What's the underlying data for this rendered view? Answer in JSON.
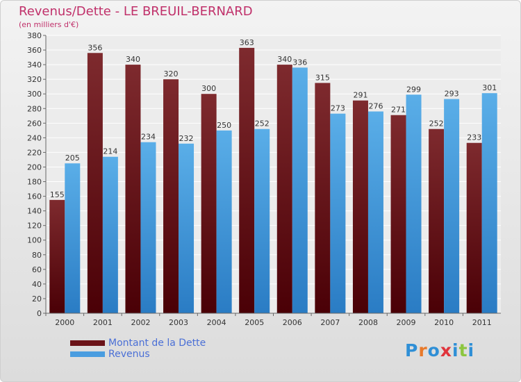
{
  "header": {
    "title": "Revenus/Dette - LE BREUIL-BERNARD",
    "subtitle": "(en milliers d'€)"
  },
  "colors": {
    "title": "#c0306a",
    "dette": "#6b1318",
    "revenus": "#4a9de0",
    "legend_text": "#4a6fd6"
  },
  "logo": {
    "text": "Proxiti"
  },
  "chart_data": {
    "type": "bar",
    "title": "Revenus/Dette - LE BREUIL-BERNARD",
    "subtitle": "(en milliers d'€)",
    "categories": [
      "2000",
      "2001",
      "2002",
      "2003",
      "2004",
      "2005",
      "2006",
      "2007",
      "2008",
      "2009",
      "2010",
      "2011"
    ],
    "series": [
      {
        "name": "Montant de la Dette",
        "values": [
          155,
          356,
          340,
          320,
          300,
          363,
          340,
          315,
          291,
          271,
          252,
          233
        ]
      },
      {
        "name": "Revenus",
        "values": [
          205,
          214,
          234,
          232,
          250,
          252,
          336,
          273,
          276,
          299,
          293,
          301
        ]
      }
    ],
    "ylim": [
      0,
      380
    ],
    "ytick_step": 20,
    "grid": true,
    "legend_position": "bottom-left"
  }
}
